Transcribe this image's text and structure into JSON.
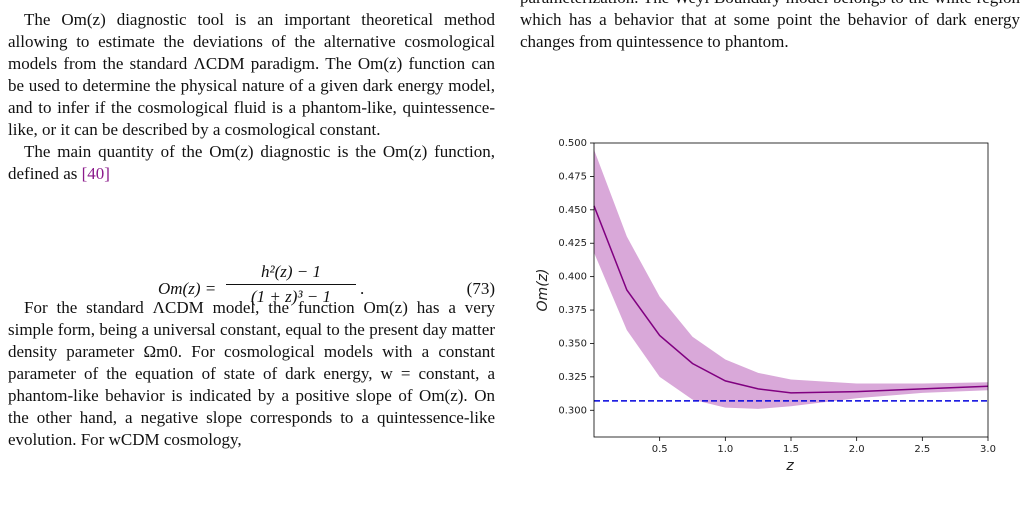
{
  "left_column": {
    "paragraphs": [
      "The Om(z) diagnostic tool is an important theoretical method allowing to estimate the deviations of the alternative cosmological models from the standard ΛCDM paradigm. The Om(z) function can be used to determine the physical nature of a given dark energy model, and to infer if the cosmological fluid is a phantom-like, quintessence-like, or it can be described by a cosmological constant.",
      "The main quantity of the Om(z) diagnostic is the Om(z) function, defined as",
      "For the standard ΛCDM model, the function Om(z) has a very simple form, being a universal constant, equal to the present day matter density parameter Ωm0. For cosmological models with a constant parameter of the equation of state of dark energy, w = constant, a phantom-like behavior is indicated by a positive slope of Om(z). On the other hand, a negative slope corresponds to a quintessence-like evolution. For wCDM cosmology,"
    ],
    "reference": "[40]",
    "equation": {
      "lhs": "Om(z) =",
      "numerator": "h²(z) − 1",
      "denominator": "(1 + z)³ − 1",
      "end": ".",
      "number": "(73)"
    }
  },
  "right_column": {
    "text": "parameterization. The Weyl Boundary model belongs to the white region which has a behavior that at some point the behavior of dark energy changes from quintessence to phantom."
  },
  "chart_data": {
    "type": "line",
    "x_label": "z",
    "y_label": "Om(z)",
    "x": [
      0,
      0.25,
      0.5,
      0.75,
      1.0,
      1.25,
      1.5,
      2.0,
      2.5,
      3.0
    ],
    "values": [
      0.453,
      0.39,
      0.356,
      0.335,
      0.322,
      0.316,
      0.313,
      0.314,
      0.316,
      0.318
    ],
    "upper": [
      0.495,
      0.43,
      0.385,
      0.355,
      0.338,
      0.328,
      0.323,
      0.32,
      0.32,
      0.321
    ],
    "lower": [
      0.418,
      0.36,
      0.325,
      0.308,
      0.302,
      0.301,
      0.303,
      0.309,
      0.313,
      0.315
    ],
    "color": "#800080",
    "band_color": "#d9a8d9",
    "reference_line": 0.307,
    "reference_color": "#0000dd",
    "xlim": [
      0,
      3
    ],
    "ylim": [
      0.28,
      0.5
    ],
    "xticks": [
      0.5,
      {
        "value": 1,
        "label": "1.0"
      },
      1.5,
      {
        "value": 2,
        "label": "2.0"
      },
      2.5,
      {
        "value": 3,
        "label": "3.0"
      }
    ],
    "yticks": [
      {
        "value": 0.3,
        "label": "0.300"
      },
      0.325,
      {
        "value": 0.35,
        "label": "0.350"
      },
      0.375,
      {
        "value": 0.4,
        "label": "0.400"
      },
      0.425,
      {
        "value": 0.45,
        "label": "0.450"
      },
      0.475,
      {
        "value": 0.5,
        "label": "0.500"
      }
    ]
  }
}
